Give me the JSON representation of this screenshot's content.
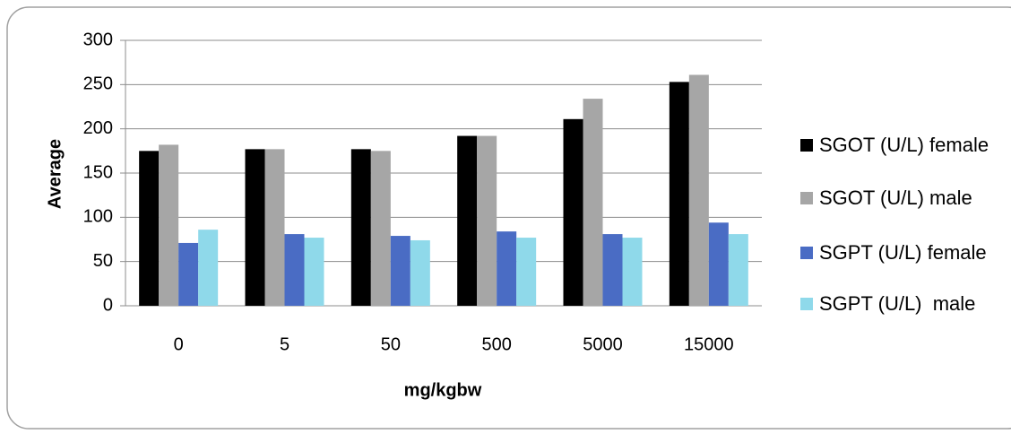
{
  "chart_data": {
    "type": "bar",
    "x_label": "mg/kgbw",
    "y_label": "Average",
    "categories": [
      "0",
      "5",
      "50",
      "500",
      "5000",
      "15000"
    ],
    "series": [
      {
        "name": "SGOT (U/L) female",
        "color": "#000000",
        "values": [
          175,
          177,
          177,
          192,
          211,
          253
        ]
      },
      {
        "name": "SGOT (U/L) male",
        "color": "#a6a6a6",
        "values": [
          182,
          177,
          175,
          192,
          234,
          261
        ]
      },
      {
        "name": "SGPT (U/L) female",
        "color": "#4a6cc4",
        "values": [
          71,
          81,
          79,
          84,
          81,
          94
        ]
      },
      {
        "name": "SGPT (U/L)  male",
        "color": "#8fd9ea",
        "values": [
          86,
          77,
          74,
          77,
          77,
          81
        ]
      }
    ],
    "ylim": [
      0,
      300
    ],
    "yticks": [
      0,
      50,
      100,
      150,
      200,
      250,
      300
    ],
    "grid": true,
    "legend": "right"
  }
}
